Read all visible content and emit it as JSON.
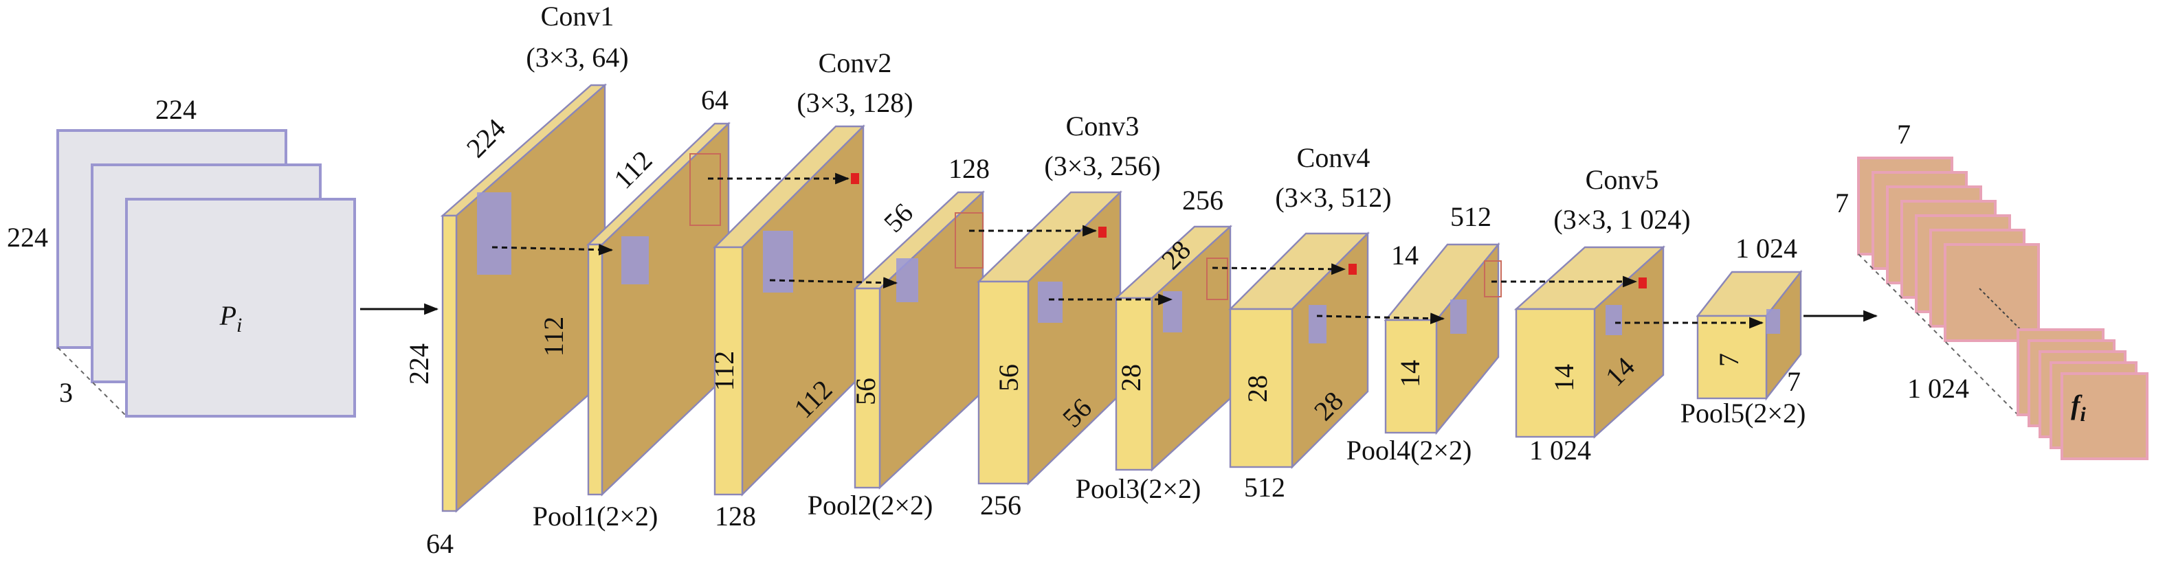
{
  "input": {
    "width": "224",
    "height": "224",
    "channels": "3",
    "label": "P",
    "label_sub": "i"
  },
  "layers": [
    {
      "title": "Conv1",
      "params": "(3×3, 64)",
      "pool": "Pool1(2×2)"
    },
    {
      "title": "Conv2",
      "params": "(3×3, 128)",
      "pool": "Pool2(2×2)"
    },
    {
      "title": "Conv3",
      "params": "(3×3, 256)",
      "pool": "Pool3(2×2)"
    },
    {
      "title": "Conv4",
      "params": "(3×3, 512)",
      "pool": "Pool4(2×2)"
    },
    {
      "title": "Conv5",
      "params": "(3×3, 1 024)",
      "pool": "Pool5(2×2)"
    }
  ],
  "blocks": [
    {
      "labels": [
        "224",
        "224",
        "112",
        "64"
      ]
    },
    {
      "labels": [
        "112",
        "64"
      ]
    },
    {
      "labels": [
        "112",
        "112",
        "128"
      ]
    },
    {
      "labels": [
        "56",
        "128",
        "56"
      ]
    },
    {
      "labels": [
        "56",
        "56",
        "256"
      ]
    },
    {
      "labels": [
        "28",
        "256",
        "28"
      ]
    },
    {
      "labels": [
        "28",
        "28",
        "512"
      ]
    },
    {
      "labels": [
        "14",
        "512",
        "14"
      ]
    },
    {
      "labels": [
        "14",
        "14",
        "1 024"
      ]
    },
    {
      "labels": [
        "1 024",
        "7",
        "7"
      ]
    }
  ],
  "output": {
    "width": "7",
    "height": "7",
    "channels": "1 024",
    "label": "f",
    "label_sub": "i"
  }
}
